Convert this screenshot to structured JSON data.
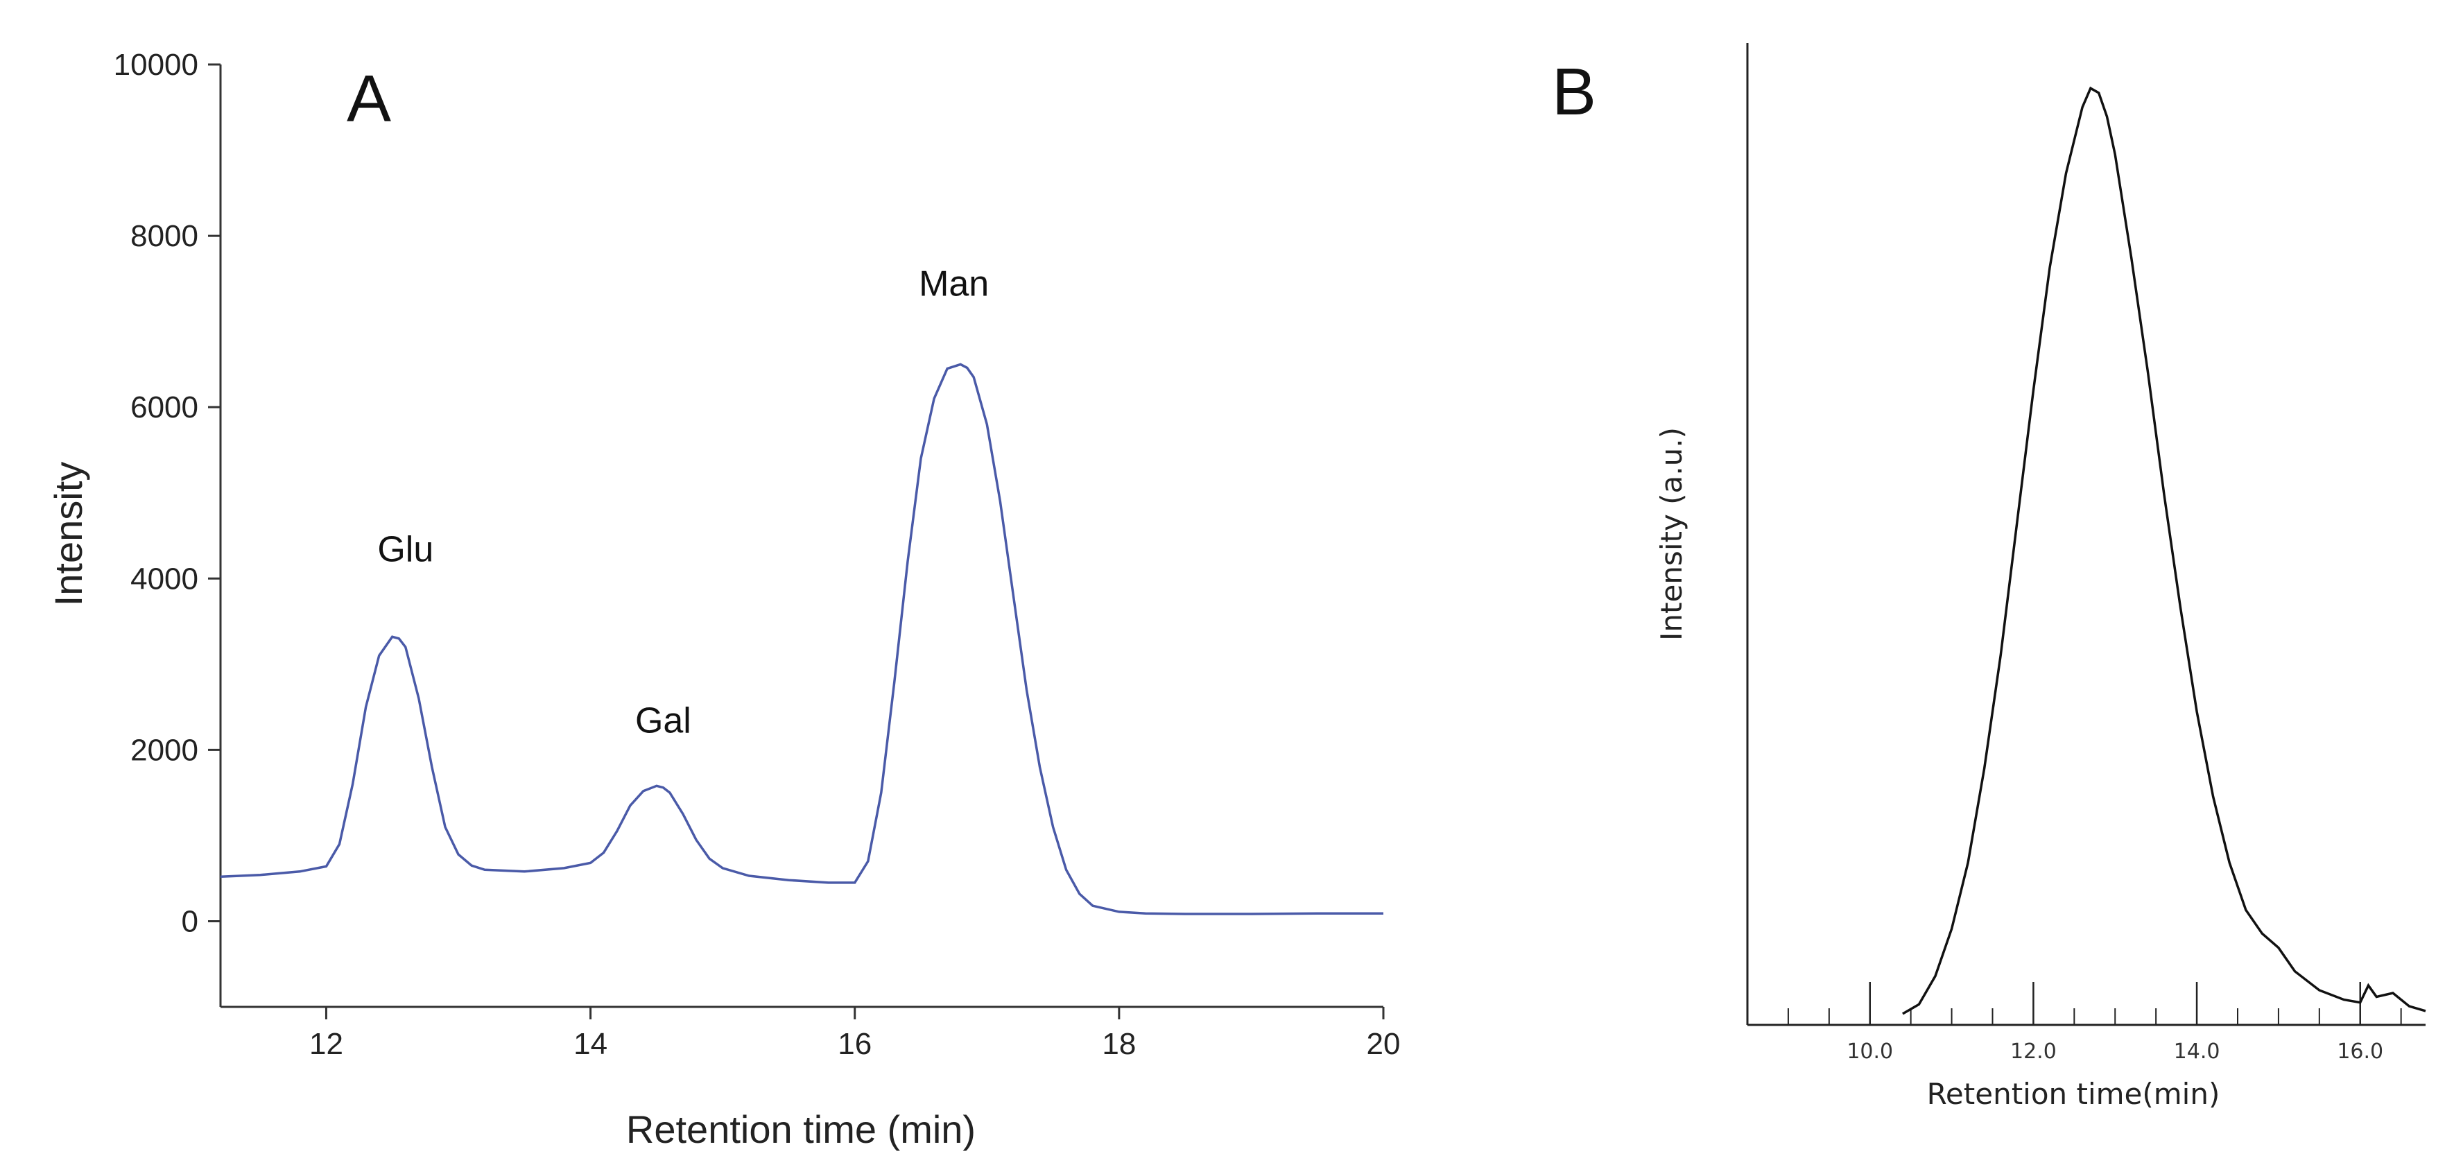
{
  "chart_data": [
    {
      "panel": "A",
      "type": "line",
      "xlabel": "Retention time (min)",
      "ylabel": "Intensity",
      "xlim": [
        11.2,
        20
      ],
      "ylim": [
        -1000,
        10000
      ],
      "x_ticks": [
        12,
        14,
        16,
        18,
        20
      ],
      "y_ticks": [
        0,
        2000,
        4000,
        6000,
        8000,
        10000
      ],
      "line_color": "#4a5aa8",
      "series": [
        {
          "name": "trace",
          "x": [
            11.2,
            11.5,
            11.8,
            12.0,
            12.1,
            12.2,
            12.3,
            12.4,
            12.5,
            12.55,
            12.6,
            12.7,
            12.8,
            12.9,
            13.0,
            13.1,
            13.2,
            13.5,
            13.8,
            14.0,
            14.1,
            14.2,
            14.3,
            14.4,
            14.5,
            14.55,
            14.6,
            14.7,
            14.8,
            14.9,
            15.0,
            15.2,
            15.5,
            15.8,
            16.0,
            16.1,
            16.2,
            16.3,
            16.4,
            16.5,
            16.6,
            16.7,
            16.8,
            16.85,
            16.9,
            17.0,
            17.1,
            17.2,
            17.3,
            17.4,
            17.5,
            17.6,
            17.7,
            17.8,
            18.0,
            18.2,
            18.5,
            19.0,
            19.5,
            20.0
          ],
          "y": [
            520,
            540,
            580,
            640,
            900,
            1600,
            2500,
            3100,
            3320,
            3300,
            3200,
            2600,
            1800,
            1100,
            780,
            650,
            600,
            580,
            620,
            680,
            800,
            1050,
            1350,
            1520,
            1580,
            1560,
            1500,
            1250,
            950,
            730,
            620,
            530,
            480,
            450,
            450,
            700,
            1500,
            2800,
            4200,
            5400,
            6100,
            6450,
            6500,
            6460,
            6350,
            5800,
            4900,
            3800,
            2700,
            1800,
            1100,
            600,
            320,
            180,
            110,
            90,
            85,
            85,
            90,
            90
          ]
        }
      ],
      "annotations": [
        {
          "label": "Glu",
          "x": 12.6,
          "y": 4200
        },
        {
          "label": "Gal",
          "x": 14.55,
          "y": 2200
        },
        {
          "label": "Man",
          "x": 16.75,
          "y": 7300
        }
      ]
    },
    {
      "panel": "B",
      "type": "line",
      "xlabel": "Retention time(min)",
      "ylabel": "Intensity (a.u.)",
      "xlim": [
        8.5,
        16.8
      ],
      "ylim": [
        0,
        100
      ],
      "x_ticks_labeled": [
        "10.0",
        "12.0",
        "14.0",
        "16.0"
      ],
      "x_ticks_major": [
        10,
        12,
        14,
        16
      ],
      "x_ticks_minor": [
        9,
        9.5,
        10.5,
        11,
        11.5,
        12.5,
        13,
        13.5,
        14.5,
        15,
        15.5,
        16.5
      ],
      "line_color": "#111111",
      "series": [
        {
          "name": "trace",
          "x": [
            10.4,
            10.6,
            10.8,
            11.0,
            11.2,
            11.4,
            11.6,
            11.8,
            12.0,
            12.2,
            12.4,
            12.6,
            12.7,
            12.8,
            12.9,
            13.0,
            13.2,
            13.4,
            13.6,
            13.8,
            14.0,
            14.2,
            14.4,
            14.6,
            14.8,
            15.0,
            15.2,
            15.5,
            15.8,
            16.0,
            16.1,
            16.2,
            16.4,
            16.6,
            16.8
          ],
          "y": [
            0,
            1,
            4,
            9,
            16,
            26,
            38,
            52,
            66,
            79,
            89,
            96,
            98,
            97.5,
            95,
            91,
            80,
            68,
            55,
            43,
            32,
            23,
            16,
            11,
            8.5,
            7,
            4.5,
            2.5,
            1.5,
            1.2,
            3,
            1.8,
            2.2,
            0.8,
            0.3
          ]
        }
      ]
    }
  ]
}
